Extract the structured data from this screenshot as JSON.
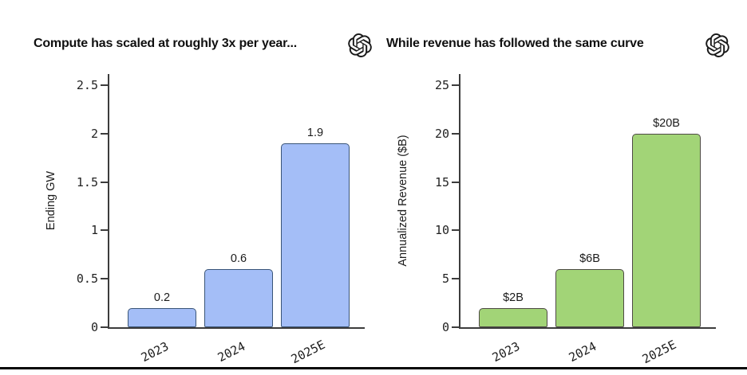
{
  "page": {
    "background": "#ffffff",
    "bottom_rule_color": "#060606",
    "logo_icon": "openai-logo"
  },
  "chart_data": [
    {
      "type": "bar",
      "title": "Compute has scaled at roughly 3x per year...",
      "xlabel": "",
      "ylabel": "Ending GW",
      "categories": [
        "2023",
        "2024",
        "2025E"
      ],
      "values": [
        0.2,
        0.6,
        1.9
      ],
      "bar_labels": [
        "0.2",
        "0.6",
        "1.9"
      ],
      "yticks": [
        0,
        0.5,
        1,
        1.5,
        2,
        2.5
      ],
      "ytick_labels": [
        "0",
        "0.5",
        "1",
        "1.5",
        "2",
        "2.5"
      ],
      "ylim": [
        0,
        2.5
      ],
      "grid": false,
      "legend": "none",
      "bar_fill": "#a4bef7",
      "bar_edge": "#3a5578"
    },
    {
      "type": "bar",
      "title": "While revenue has followed the same curve",
      "xlabel": "",
      "ylabel": "Annualized Revenue ($B)",
      "categories": [
        "2023",
        "2024",
        "2025E"
      ],
      "values": [
        2,
        6,
        20
      ],
      "bar_labels": [
        "$2B",
        "$6B",
        "$20B"
      ],
      "yticks": [
        0,
        5,
        10,
        15,
        20,
        25
      ],
      "ytick_labels": [
        "0",
        "5",
        "10",
        "15",
        "20",
        "25"
      ],
      "ylim": [
        0,
        25
      ],
      "grid": false,
      "legend": "none",
      "bar_fill": "#a2d477",
      "bar_edge": "#4e4a45"
    }
  ]
}
